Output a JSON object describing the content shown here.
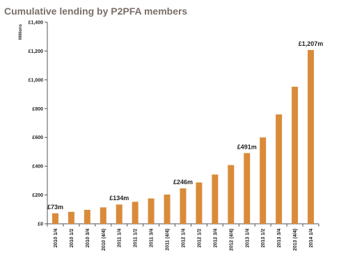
{
  "title": "Cumulative lending by P2PFA members",
  "chart_data": {
    "type": "bar",
    "title": "Cumulative lending by P2PFA members",
    "ylabel": "Millions",
    "xlabel": "",
    "ylim": [
      0,
      1400
    ],
    "yticks": [
      0,
      200,
      400,
      600,
      800,
      1000,
      1200,
      1400
    ],
    "ytick_labels": [
      "£0",
      "£200",
      "£400",
      "£600",
      "£800",
      "£1,000",
      "£1,200",
      "£1,400"
    ],
    "categories": [
      "2010 1/4",
      "2010 1/2",
      "2010 3/4",
      "2010 (4/4)",
      "2011 1/4",
      "2011 1/2",
      "2011 3/4",
      "2011 (4/4)",
      "2012 1/4",
      "2012 1/2",
      "2012 3/4",
      "2012 (4/4)",
      "2013 1/4",
      "2013 1/2",
      "2013 3/4",
      "2013 (4/4)",
      "2014 1/4"
    ],
    "values": [
      73,
      83,
      97,
      114,
      134,
      153,
      176,
      203,
      246,
      287,
      342,
      408,
      491,
      600,
      760,
      952,
      1207
    ],
    "data_labels": [
      {
        "index": 0,
        "text": "£73m"
      },
      {
        "index": 4,
        "text": "£134m"
      },
      {
        "index": 8,
        "text": "£246m"
      },
      {
        "index": 12,
        "text": "£491m"
      },
      {
        "index": 16,
        "text": "£1,207m"
      }
    ],
    "bar_color": "#d98b3a",
    "grid": false,
    "legend": "none"
  }
}
